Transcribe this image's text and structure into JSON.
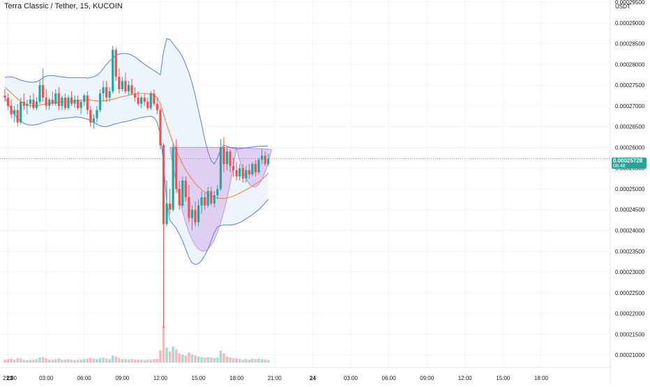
{
  "chart_data": {
    "type": "candlestick",
    "title": "Terra Classic / Tether, 15, KUCOIN",
    "y_axis": {
      "unit": "USDT",
      "range": [
        0.000207,
        0.0002955
      ],
      "ticks": [
        "0.00029500",
        "0.00029000",
        "0.00028500",
        "0.00028000",
        "0.00027500",
        "0.00027000",
        "0.00026500",
        "0.00026000",
        "0.00025500",
        "0.00025000",
        "0.00024500",
        "0.00024000",
        "0.00023500",
        "0.00023000",
        "0.00022500",
        "0.00022000",
        "0.00021500",
        "0.00021000"
      ]
    },
    "x_axis": {
      "ticks": [
        {
          "label": "21:00",
          "i": -11
        },
        {
          "label": "23",
          "i": 1
        },
        {
          "label": "03:00",
          "i": 13
        },
        {
          "label": "06:00",
          "i": 25
        },
        {
          "label": "09:00",
          "i": 37
        },
        {
          "label": "12:00",
          "i": 49
        },
        {
          "label": "15:00",
          "i": 61
        },
        {
          "label": "18:00",
          "i": 73
        },
        {
          "label": "21:00",
          "i": 85
        },
        {
          "label": "24",
          "i": 97
        },
        {
          "label": "03:00",
          "i": 109
        },
        {
          "label": "06:00",
          "i": 121
        },
        {
          "label": "09:00",
          "i": 133
        },
        {
          "label": "12:00",
          "i": 145
        },
        {
          "label": "15:00",
          "i": 157
        },
        {
          "label": "18:00",
          "i": 169
        }
      ]
    },
    "current_price": {
      "value": "0.00025728",
      "countdown": "08:48",
      "price": 0.00025728
    },
    "candles": [
      [
        0.0002725,
        0.000274,
        0.000271,
        0.000272,
        0.3
      ],
      [
        0.000272,
        0.000273,
        0.000269,
        0.00027,
        0.35
      ],
      [
        0.00027,
        0.0002715,
        0.000267,
        0.000268,
        0.4
      ],
      [
        0.000268,
        0.00027,
        0.000266,
        0.000269,
        0.3
      ],
      [
        0.000269,
        0.0002705,
        0.000265,
        0.000266,
        0.45
      ],
      [
        0.000266,
        0.000272,
        0.0002655,
        0.000271,
        0.4
      ],
      [
        0.000271,
        0.000273,
        0.000269,
        0.00027,
        0.3
      ],
      [
        0.00027,
        0.0002715,
        0.000268,
        0.0002705,
        0.25
      ],
      [
        0.0002705,
        0.0002725,
        0.0002695,
        0.0002715,
        0.3
      ],
      [
        0.0002715,
        0.000273,
        0.000269,
        0.0002695,
        0.3
      ],
      [
        0.0002695,
        0.000272,
        0.000269,
        0.000271,
        0.35
      ],
      [
        0.000271,
        0.000276,
        0.0002705,
        0.000275,
        0.5
      ],
      [
        0.000275,
        0.000279,
        0.000271,
        0.000272,
        0.55
      ],
      [
        0.000272,
        0.000274,
        0.000269,
        0.00027,
        0.4
      ],
      [
        0.00027,
        0.000272,
        0.000269,
        0.0002715,
        0.3
      ],
      [
        0.0002715,
        0.0002735,
        0.00027,
        0.0002705,
        0.3
      ],
      [
        0.0002705,
        0.000274,
        0.00027,
        0.000273,
        0.35
      ],
      [
        0.000273,
        0.0002745,
        0.000269,
        0.00027,
        0.4
      ],
      [
        0.00027,
        0.0002725,
        0.000269,
        0.000272,
        0.3
      ],
      [
        0.000272,
        0.000273,
        0.000269,
        0.0002695,
        0.3
      ],
      [
        0.0002695,
        0.0002725,
        0.000269,
        0.000272,
        0.35
      ],
      [
        0.000272,
        0.0002735,
        0.00027,
        0.0002705,
        0.3
      ],
      [
        0.0002705,
        0.0002725,
        0.0002695,
        0.0002715,
        0.25
      ],
      [
        0.0002715,
        0.0002725,
        0.000269,
        0.0002695,
        0.3
      ],
      [
        0.0002695,
        0.0002715,
        0.000268,
        0.000271,
        0.3
      ],
      [
        0.000271,
        0.000273,
        0.00027,
        0.0002725,
        0.35
      ],
      [
        0.0002725,
        0.0002735,
        0.000268,
        0.000269,
        0.4
      ],
      [
        0.000269,
        0.00027,
        0.000265,
        0.000266,
        0.45
      ],
      [
        0.000266,
        0.000268,
        0.0002645,
        0.000267,
        0.4
      ],
      [
        0.000267,
        0.00027,
        0.000266,
        0.000269,
        0.35
      ],
      [
        0.000269,
        0.000274,
        0.0002685,
        0.000273,
        0.45
      ],
      [
        0.000273,
        0.000276,
        0.000271,
        0.0002745,
        0.5
      ],
      [
        0.0002745,
        0.000276,
        0.000271,
        0.000272,
        0.4
      ],
      [
        0.000272,
        0.0002745,
        0.000271,
        0.0002735,
        0.35
      ],
      [
        0.0002735,
        0.0002845,
        0.000273,
        0.0002835,
        0.7
      ],
      [
        0.0002835,
        0.000284,
        0.000276,
        0.000277,
        0.6
      ],
      [
        0.000277,
        0.000279,
        0.000273,
        0.000274,
        0.45
      ],
      [
        0.000274,
        0.000277,
        0.0002735,
        0.000276,
        0.35
      ],
      [
        0.000276,
        0.000278,
        0.000273,
        0.0002735,
        0.35
      ],
      [
        0.0002735,
        0.000276,
        0.0002725,
        0.000275,
        0.3
      ],
      [
        0.000275,
        0.0002765,
        0.0002725,
        0.000273,
        0.35
      ],
      [
        0.000273,
        0.0002745,
        0.000271,
        0.000272,
        0.3
      ],
      [
        0.000272,
        0.0002735,
        0.00027,
        0.0002705,
        0.3
      ],
      [
        0.0002705,
        0.0002725,
        0.0002695,
        0.000272,
        0.3
      ],
      [
        0.000272,
        0.000273,
        0.00027,
        0.000271,
        0.25
      ],
      [
        0.000271,
        0.000272,
        0.000269,
        0.0002695,
        0.3
      ],
      [
        0.0002695,
        0.0002735,
        0.000269,
        0.000273,
        0.3
      ],
      [
        0.000273,
        0.000274,
        0.00027,
        0.0002705,
        0.35
      ],
      [
        0.0002705,
        0.000272,
        0.000268,
        0.000269,
        0.35
      ],
      [
        0.000269,
        0.0002695,
        0.0002595,
        0.0002605,
        1.2
      ],
      [
        0.0002605,
        0.000261,
        0.0002165,
        0.0002415,
        3.6
      ],
      [
        0.0002415,
        0.000252,
        0.000241,
        0.0002465,
        1.5
      ],
      [
        0.0002465,
        0.00025,
        0.000244,
        0.000245,
        1.1
      ],
      [
        0.000245,
        0.000261,
        0.0002445,
        0.00026,
        1.6
      ],
      [
        0.00026,
        0.000262,
        0.000249,
        0.00025,
        1.3
      ],
      [
        0.00025,
        0.000252,
        0.000245,
        0.000246,
        0.9
      ],
      [
        0.000246,
        0.000253,
        0.0002455,
        0.000252,
        0.8
      ],
      [
        0.000252,
        0.000253,
        0.000247,
        0.000248,
        0.7
      ],
      [
        0.000248,
        0.000251,
        0.000242,
        0.000243,
        1.0
      ],
      [
        0.000243,
        0.000246,
        0.00024,
        0.000245,
        0.8
      ],
      [
        0.000245,
        0.000247,
        0.000241,
        0.000242,
        0.7
      ],
      [
        0.000242,
        0.0002475,
        0.000241,
        0.000246,
        0.6
      ],
      [
        0.000246,
        0.0002495,
        0.000244,
        0.000248,
        0.55
      ],
      [
        0.000248,
        0.000249,
        0.000245,
        0.000246,
        0.5
      ],
      [
        0.000246,
        0.0002505,
        0.0002455,
        0.0002495,
        0.55
      ],
      [
        0.0002495,
        0.0002505,
        0.000246,
        0.0002465,
        0.5
      ],
      [
        0.0002465,
        0.0002495,
        0.0002455,
        0.0002485,
        0.45
      ],
      [
        0.0002485,
        0.000251,
        0.0002475,
        0.00025,
        0.5
      ],
      [
        0.00025,
        0.000262,
        0.0002495,
        0.00026,
        1.2
      ],
      [
        0.00026,
        0.0002625,
        0.000254,
        0.000256,
        0.9
      ],
      [
        0.000256,
        0.00026,
        0.0002545,
        0.000259,
        0.6
      ],
      [
        0.000259,
        0.0002595,
        0.000254,
        0.0002555,
        0.5
      ],
      [
        0.0002555,
        0.0002575,
        0.000253,
        0.0002545,
        0.45
      ],
      [
        0.0002545,
        0.0002565,
        0.000252,
        0.000253,
        0.4
      ],
      [
        0.000253,
        0.000256,
        0.000252,
        0.000255,
        0.35
      ],
      [
        0.000255,
        0.000256,
        0.0002515,
        0.0002525,
        0.3
      ],
      [
        0.0002525,
        0.0002555,
        0.0002515,
        0.0002545,
        0.35
      ],
      [
        0.0002545,
        0.000256,
        0.0002525,
        0.0002535,
        0.3
      ],
      [
        0.0002535,
        0.0002565,
        0.000253,
        0.000256,
        0.4
      ],
      [
        0.000256,
        0.000257,
        0.000253,
        0.000254,
        0.35
      ],
      [
        0.000254,
        0.0002575,
        0.0002535,
        0.000257,
        0.4
      ],
      [
        0.000257,
        0.0002595,
        0.000256,
        0.000258,
        0.35
      ],
      [
        0.000258,
        0.000259,
        0.0002555,
        0.000256,
        0.3
      ],
      [
        0.000256,
        0.0002585,
        0.0002555,
        0.0002573,
        0.25
      ]
    ],
    "sma": [
      0.0002745,
      0.0002738,
      0.0002731,
      0.0002724,
      0.0002717,
      0.0002711,
      0.0002706,
      0.0002703,
      0.0002701,
      0.00027,
      0.00027,
      0.0002702,
      0.0002704,
      0.0002705,
      0.0002706,
      0.0002707,
      0.0002708,
      0.0002709,
      0.000271,
      0.000271,
      0.000271,
      0.0002711,
      0.0002712,
      0.0002713,
      0.0002714,
      0.0002715,
      0.0002715,
      0.0002714,
      0.0002713,
      0.0002712,
      0.0002712,
      0.0002712,
      0.0002713,
      0.0002714,
      0.0002716,
      0.0002718,
      0.000272,
      0.0002722,
      0.0002724,
      0.0002726,
      0.0002728,
      0.0002729,
      0.000273,
      0.000273,
      0.000273,
      0.0002729,
      0.0002728,
      0.0002726,
      0.000272,
      0.0002705,
      0.000268,
      0.0002655,
      0.0002632,
      0.0002611,
      0.0002592,
      0.0002575,
      0.000256,
      0.0002546,
      0.0002534,
      0.0002523,
      0.0002513,
      0.0002505,
      0.0002498,
      0.0002492,
      0.0002487,
      0.0002483,
      0.000248,
      0.0002478,
      0.0002477,
      0.0002477,
      0.0002478,
      0.000248,
      0.0002483,
      0.0002486,
      0.000249,
      0.0002494,
      0.0002498,
      0.0002502,
      0.0002507,
      0.0002512,
      0.0002517,
      0.0002523,
      0.000253,
      0.0002538
    ],
    "bb_upper": [
      0.0002768,
      0.000277,
      0.000277,
      0.0002768,
      0.0002765,
      0.0002762,
      0.000276,
      0.0002758,
      0.0002757,
      0.0002757,
      0.0002758,
      0.0002762,
      0.0002768,
      0.0002772,
      0.0002773,
      0.0002773,
      0.0002772,
      0.0002771,
      0.000277,
      0.0002769,
      0.0002768,
      0.0002768,
      0.0002768,
      0.0002768,
      0.0002768,
      0.0002768,
      0.0002767,
      0.0002768,
      0.000277,
      0.0002774,
      0.000278,
      0.000279,
      0.00028,
      0.0002808,
      0.0002815,
      0.0002822,
      0.0002825,
      0.0002826,
      0.0002826,
      0.0002825,
      0.0002822,
      0.0002818,
      0.0002812,
      0.0002806,
      0.00028,
      0.0002795,
      0.000279,
      0.0002785,
      0.000278,
      0.0002775,
      0.000283,
      0.0002862,
      0.000286,
      0.000285,
      0.000284,
      0.000283,
      0.0002818,
      0.00028,
      0.000278,
      0.0002755,
      0.0002725,
      0.000269,
      0.0002655,
      0.000262,
      0.000259,
      0.0002568,
      0.000256,
      0.0002575,
      0.0002595,
      0.0002605,
      0.0002603,
      0.00026,
      0.0002598,
      0.0002597,
      0.0002597,
      0.0002598,
      0.0002599,
      0.00026,
      0.0002601,
      0.0002602,
      0.0002603,
      0.0002603,
      0.0002603,
      0.0002604
    ],
    "bb_lower": [
      0.000272,
      0.0002705,
      0.0002692,
      0.000268,
      0.000267,
      0.0002663,
      0.0002658,
      0.0002655,
      0.0002654,
      0.0002654,
      0.0002655,
      0.0002657,
      0.000266,
      0.0002662,
      0.0002664,
      0.0002666,
      0.0002668,
      0.0002669,
      0.000267,
      0.0002671,
      0.0002671,
      0.0002672,
      0.0002673,
      0.0002673,
      0.0002672,
      0.000267,
      0.0002668,
      0.0002664,
      0.000266,
      0.0002656,
      0.0002652,
      0.000265,
      0.000265,
      0.0002652,
      0.0002655,
      0.0002657,
      0.0002659,
      0.0002661,
      0.0002662,
      0.0002664,
      0.0002666,
      0.0002668,
      0.000267,
      0.0002672,
      0.0002673,
      0.0002674,
      0.0002675,
      0.0002672,
      0.000266,
      0.000263,
      0.000256,
      0.000247,
      0.0002425,
      0.0002415,
      0.0002405,
      0.000239,
      0.0002375,
      0.0002355,
      0.0002335,
      0.0002322,
      0.0002318,
      0.000232,
      0.0002328,
      0.000234,
      0.0002355,
      0.0002375,
      0.0002395,
      0.0002408,
      0.0002412,
      0.0002413,
      0.0002413,
      0.0002413,
      0.0002414,
      0.0002416,
      0.0002419,
      0.0002423,
      0.0002428,
      0.0002433,
      0.0002438,
      0.0002444,
      0.000245,
      0.0002458,
      0.0002466,
      0.0002475
    ],
    "pattern_shapes": {
      "cup": {
        "i0": 52,
        "i1": 73,
        "rim": 0.00026,
        "bottom": 0.000235
      },
      "handle": {
        "i0": 73,
        "i1": 84,
        "rim_start": 0.00026,
        "rim_end": 0.0002595,
        "bottom": 0.0002505
      }
    },
    "colors": {
      "up": "#26a69a",
      "down": "#ef5350",
      "sma": "#ff7f3f",
      "bb": "#5b7fd6",
      "bb_fill": "#e8f1fb",
      "pattern_fill": "#d9c4f0",
      "pattern_line": "#b48ee0"
    }
  },
  "chart_labels": {
    "title": "Terra Classic / Tether, 15, KUCOIN"
  }
}
